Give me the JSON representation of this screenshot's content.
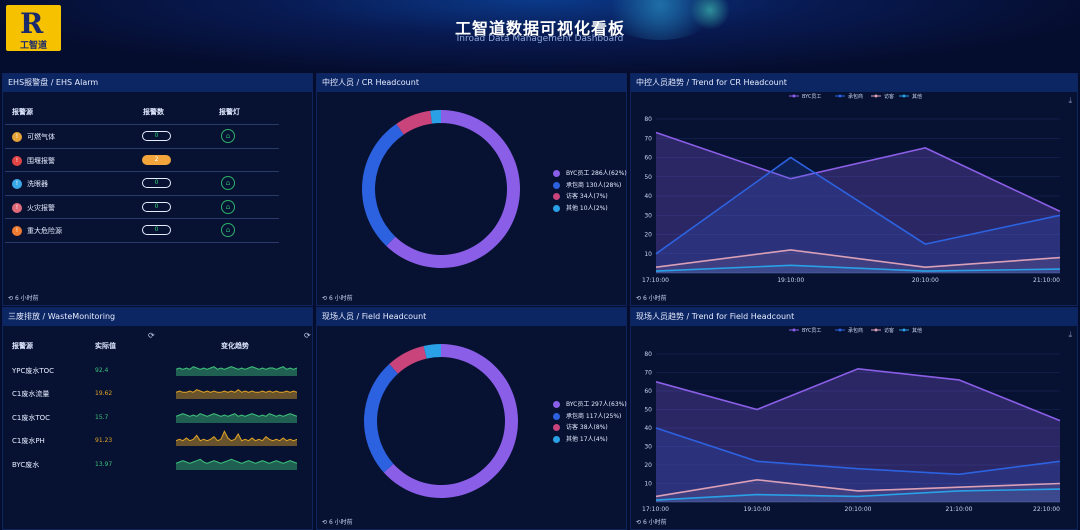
{
  "header": {
    "title": "工智道数据可视化看板",
    "subtitle": "Inroad Data Management Dashboard",
    "logo_text": "工智道",
    "logo_mark": "R"
  },
  "ehs": {
    "title": "EHS报警盘 / EHS Alarm",
    "columns": [
      "报警源",
      "报警数",
      "报警灯"
    ],
    "rows": [
      {
        "name": "可燃气体",
        "count": "0",
        "status": "ok",
        "icon_color": "#e7a238",
        "icon": "flame-icon"
      },
      {
        "name": "围堰报警",
        "count": "2",
        "status": "warn",
        "icon_color": "#e04444",
        "icon": "warning-icon"
      },
      {
        "name": "洗眼器",
        "count": "0",
        "status": "ok",
        "icon_color": "#3aa9e8",
        "icon": "eyewash-icon"
      },
      {
        "name": "火灾报警",
        "count": "0",
        "status": "ok",
        "icon_color": "#e06a7a",
        "icon": "fire-icon"
      },
      {
        "name": "重大危险源",
        "count": "0",
        "status": "ok",
        "icon_color": "#f07a30",
        "icon": "hazard-icon"
      }
    ],
    "footer": "6 小时前"
  },
  "waste": {
    "title": "三废排放 / WasteMonitoring",
    "columns": [
      "报警源",
      "实际值",
      "变化趋势"
    ],
    "rows": [
      {
        "name": "YPC废水TOC",
        "value": "92.4",
        "color": "#3ec27a",
        "trend": [
          5,
          6,
          5,
          6,
          5,
          7,
          6,
          5,
          6,
          5,
          6,
          7,
          5,
          6,
          5,
          6,
          7,
          6,
          5,
          6,
          5,
          6,
          7,
          6,
          5,
          6,
          5,
          6,
          6,
          5,
          6,
          7,
          5,
          6,
          5,
          6
        ]
      },
      {
        "name": "C1废水流量",
        "value": "19.62",
        "color": "#e2a524",
        "trend": [
          5,
          6,
          5,
          5,
          6,
          5,
          7,
          6,
          5,
          6,
          5,
          6,
          5,
          5,
          6,
          5,
          6,
          5,
          7,
          5,
          6,
          5,
          6,
          5,
          5,
          6,
          5,
          6,
          5,
          6,
          5,
          5,
          6,
          5,
          6,
          5
        ]
      },
      {
        "name": "C1废水TOC",
        "value": "15.7",
        "color": "#3ec27a",
        "trend": [
          5,
          6,
          7,
          6,
          5,
          6,
          5,
          7,
          6,
          5,
          6,
          7,
          6,
          5,
          6,
          5,
          6,
          7,
          5,
          6,
          5,
          6,
          7,
          6,
          5,
          6,
          5,
          7,
          6,
          5,
          6,
          5,
          6,
          7,
          6,
          5
        ]
      },
      {
        "name": "C1废水PH",
        "value": "91.23",
        "color": "#e2a524",
        "trend": [
          4,
          5,
          4,
          6,
          4,
          5,
          8,
          4,
          5,
          4,
          5,
          7,
          4,
          5,
          11,
          6,
          4,
          5,
          9,
          4,
          5,
          4,
          6,
          4,
          5,
          4,
          7,
          5,
          4,
          5,
          4,
          6,
          4,
          5,
          4,
          5
        ]
      },
      {
        "name": "BYC废水",
        "value": "13.97",
        "color": "#3ec27a",
        "trend": [
          5,
          6,
          7,
          6,
          5,
          6,
          7,
          8,
          6,
          5,
          6,
          7,
          6,
          5,
          6,
          7,
          8,
          7,
          6,
          5,
          6,
          7,
          6,
          5,
          6,
          7,
          6,
          5,
          6,
          7,
          6,
          5,
          6,
          7,
          6,
          5
        ]
      }
    ],
    "refresh_icon": "refresh-icon"
  },
  "cr_headcount": {
    "title": "中控人员 / CR Headcount",
    "footer": "6 小时前",
    "legend": [
      "BYC员工  286人(62%)",
      "承包商  130人(28%)",
      "访客  34人(7%)",
      "其他  10人(2%)"
    ]
  },
  "field_headcount": {
    "title": "现场人员 / Field Headcount",
    "footer": "6 小时前",
    "legend": [
      "BYC员工  297人(63%)",
      "承包商  117人(25%)",
      "访客  38人(8%)",
      "其他  17人(4%)"
    ]
  },
  "cr_trend": {
    "title": "中控人员趋势 / Trend for CR Headcount",
    "footer": "6 小时前",
    "legend": [
      "BYC员工",
      "承包商",
      "访客",
      "其他"
    ]
  },
  "field_trend": {
    "title": "现场人员趋势 / Trend for Field Headcount",
    "footer": "6 小时前",
    "legend": [
      "BYC员工",
      "承包商",
      "访客",
      "其他"
    ]
  },
  "colors": {
    "byc": "#8a5ee6",
    "contractor": "#2c62e0",
    "visitor": "#c8447a",
    "other": "#2aa0e6",
    "visitor_line": "#d9a0b8"
  },
  "chart_data": [
    {
      "type": "pie",
      "categories": [
        "BYC员工",
        "承包商",
        "访客",
        "其他"
      ],
      "values": [
        286,
        130,
        34,
        10
      ]
    },
    {
      "type": "pie",
      "categories": [
        "BYC员工",
        "承包商",
        "访客",
        "其他"
      ],
      "values": [
        297,
        117,
        38,
        17
      ]
    },
    {
      "type": "line",
      "x": [
        "17:10:00",
        "19:10:00",
        "20:10:00",
        "21:10:00"
      ],
      "y_ticks": [
        10,
        20,
        30,
        40,
        50,
        60,
        70,
        80
      ],
      "ylim": [
        0,
        80
      ],
      "series": [
        {
          "name": "BYC员工",
          "values": [
            73,
            49,
            65,
            32
          ]
        },
        {
          "name": "承包商",
          "values": [
            10,
            60,
            15,
            30
          ]
        },
        {
          "name": "访客",
          "values": [
            3,
            12,
            3,
            8
          ]
        },
        {
          "name": "其他",
          "values": [
            1,
            4,
            1,
            2
          ]
        }
      ]
    },
    {
      "type": "line",
      "x": [
        "17:10:00",
        "19:10:00",
        "20:10:00",
        "21:10:00",
        "22:10:00"
      ],
      "y_ticks": [
        10,
        20,
        30,
        40,
        50,
        60,
        70,
        80
      ],
      "ylim": [
        0,
        80
      ],
      "series": [
        {
          "name": "BYC员工",
          "values": [
            65,
            50,
            72,
            66,
            44
          ]
        },
        {
          "name": "承包商",
          "values": [
            40,
            22,
            18,
            15,
            22
          ]
        },
        {
          "name": "访客",
          "values": [
            3,
            12,
            6,
            8,
            10
          ]
        },
        {
          "name": "其他",
          "values": [
            1,
            4,
            3,
            6,
            7
          ]
        }
      ]
    }
  ]
}
